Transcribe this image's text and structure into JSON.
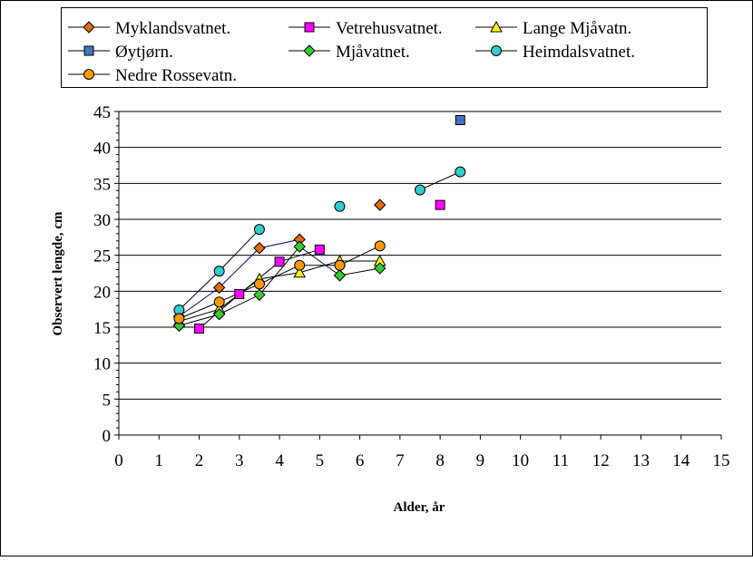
{
  "chart_data": {
    "type": "line",
    "xlabel": "Alder, år",
    "ylabel": "Observert lengde, cm",
    "xlim": [
      0,
      15
    ],
    "ylim": [
      0,
      45
    ],
    "x_ticks": [
      0,
      1,
      2,
      3,
      4,
      5,
      6,
      7,
      8,
      9,
      10,
      11,
      12,
      13,
      14,
      15
    ],
    "y_ticks": [
      0,
      5,
      10,
      15,
      20,
      25,
      30,
      35,
      40,
      45
    ],
    "grid": "horizontal",
    "legend_position": "top",
    "series": [
      {
        "name": "Myklandsvatnet.",
        "color": "#e36c0a",
        "marker": "diamond",
        "x": [
          1.5,
          2.5,
          3.5,
          4.5,
          6.5
        ],
        "y": [
          16.5,
          20.5,
          26.0,
          27.2,
          32.0
        ],
        "connected_count": 4
      },
      {
        "name": "Vetrehusvatnet.",
        "color": "#ff00ff",
        "marker": "square",
        "x": [
          2.0,
          3.0,
          4.0,
          5.0,
          8.0
        ],
        "y": [
          14.8,
          19.6,
          24.1,
          25.8,
          32.0
        ],
        "connected_count": 4
      },
      {
        "name": "Lange Mjåvatn.",
        "color": "#ffff00",
        "marker": "triangle",
        "x": [
          1.5,
          2.5,
          3.5,
          4.5,
          5.5,
          6.5
        ],
        "y": [
          15.8,
          17.5,
          21.7,
          22.6,
          24.2,
          24.2
        ],
        "connected_count": 6
      },
      {
        "name": "Øytjørn.",
        "color": "#4472c4",
        "marker": "square",
        "x": [
          8.5
        ],
        "y": [
          43.8
        ],
        "connected_count": 1
      },
      {
        "name": "Mjåvatnet.",
        "color": "#33cc33",
        "marker": "diamond",
        "x": [
          1.5,
          2.5,
          3.5,
          4.5,
          5.5,
          6.5
        ],
        "y": [
          15.2,
          16.8,
          19.5,
          26.2,
          22.2,
          23.2
        ],
        "connected_count": 6
      },
      {
        "name": "Heimdalsvatnet.",
        "color": "#33cccc",
        "marker": "circle",
        "x": [
          1.5,
          2.5,
          3.5,
          5.5,
          7.5,
          8.5
        ],
        "y": [
          17.4,
          22.8,
          28.6,
          31.8,
          34.1,
          36.6
        ],
        "connected_count": 3,
        "connect_last": true
      },
      {
        "name": "Nedre Rossevatn.",
        "color": "#ff9900",
        "marker": "circle",
        "x": [
          1.5,
          2.5,
          3.5,
          4.5,
          5.5,
          6.5
        ],
        "y": [
          16.2,
          18.5,
          21.0,
          23.6,
          23.6,
          26.3
        ],
        "connected_count": 6
      }
    ]
  }
}
